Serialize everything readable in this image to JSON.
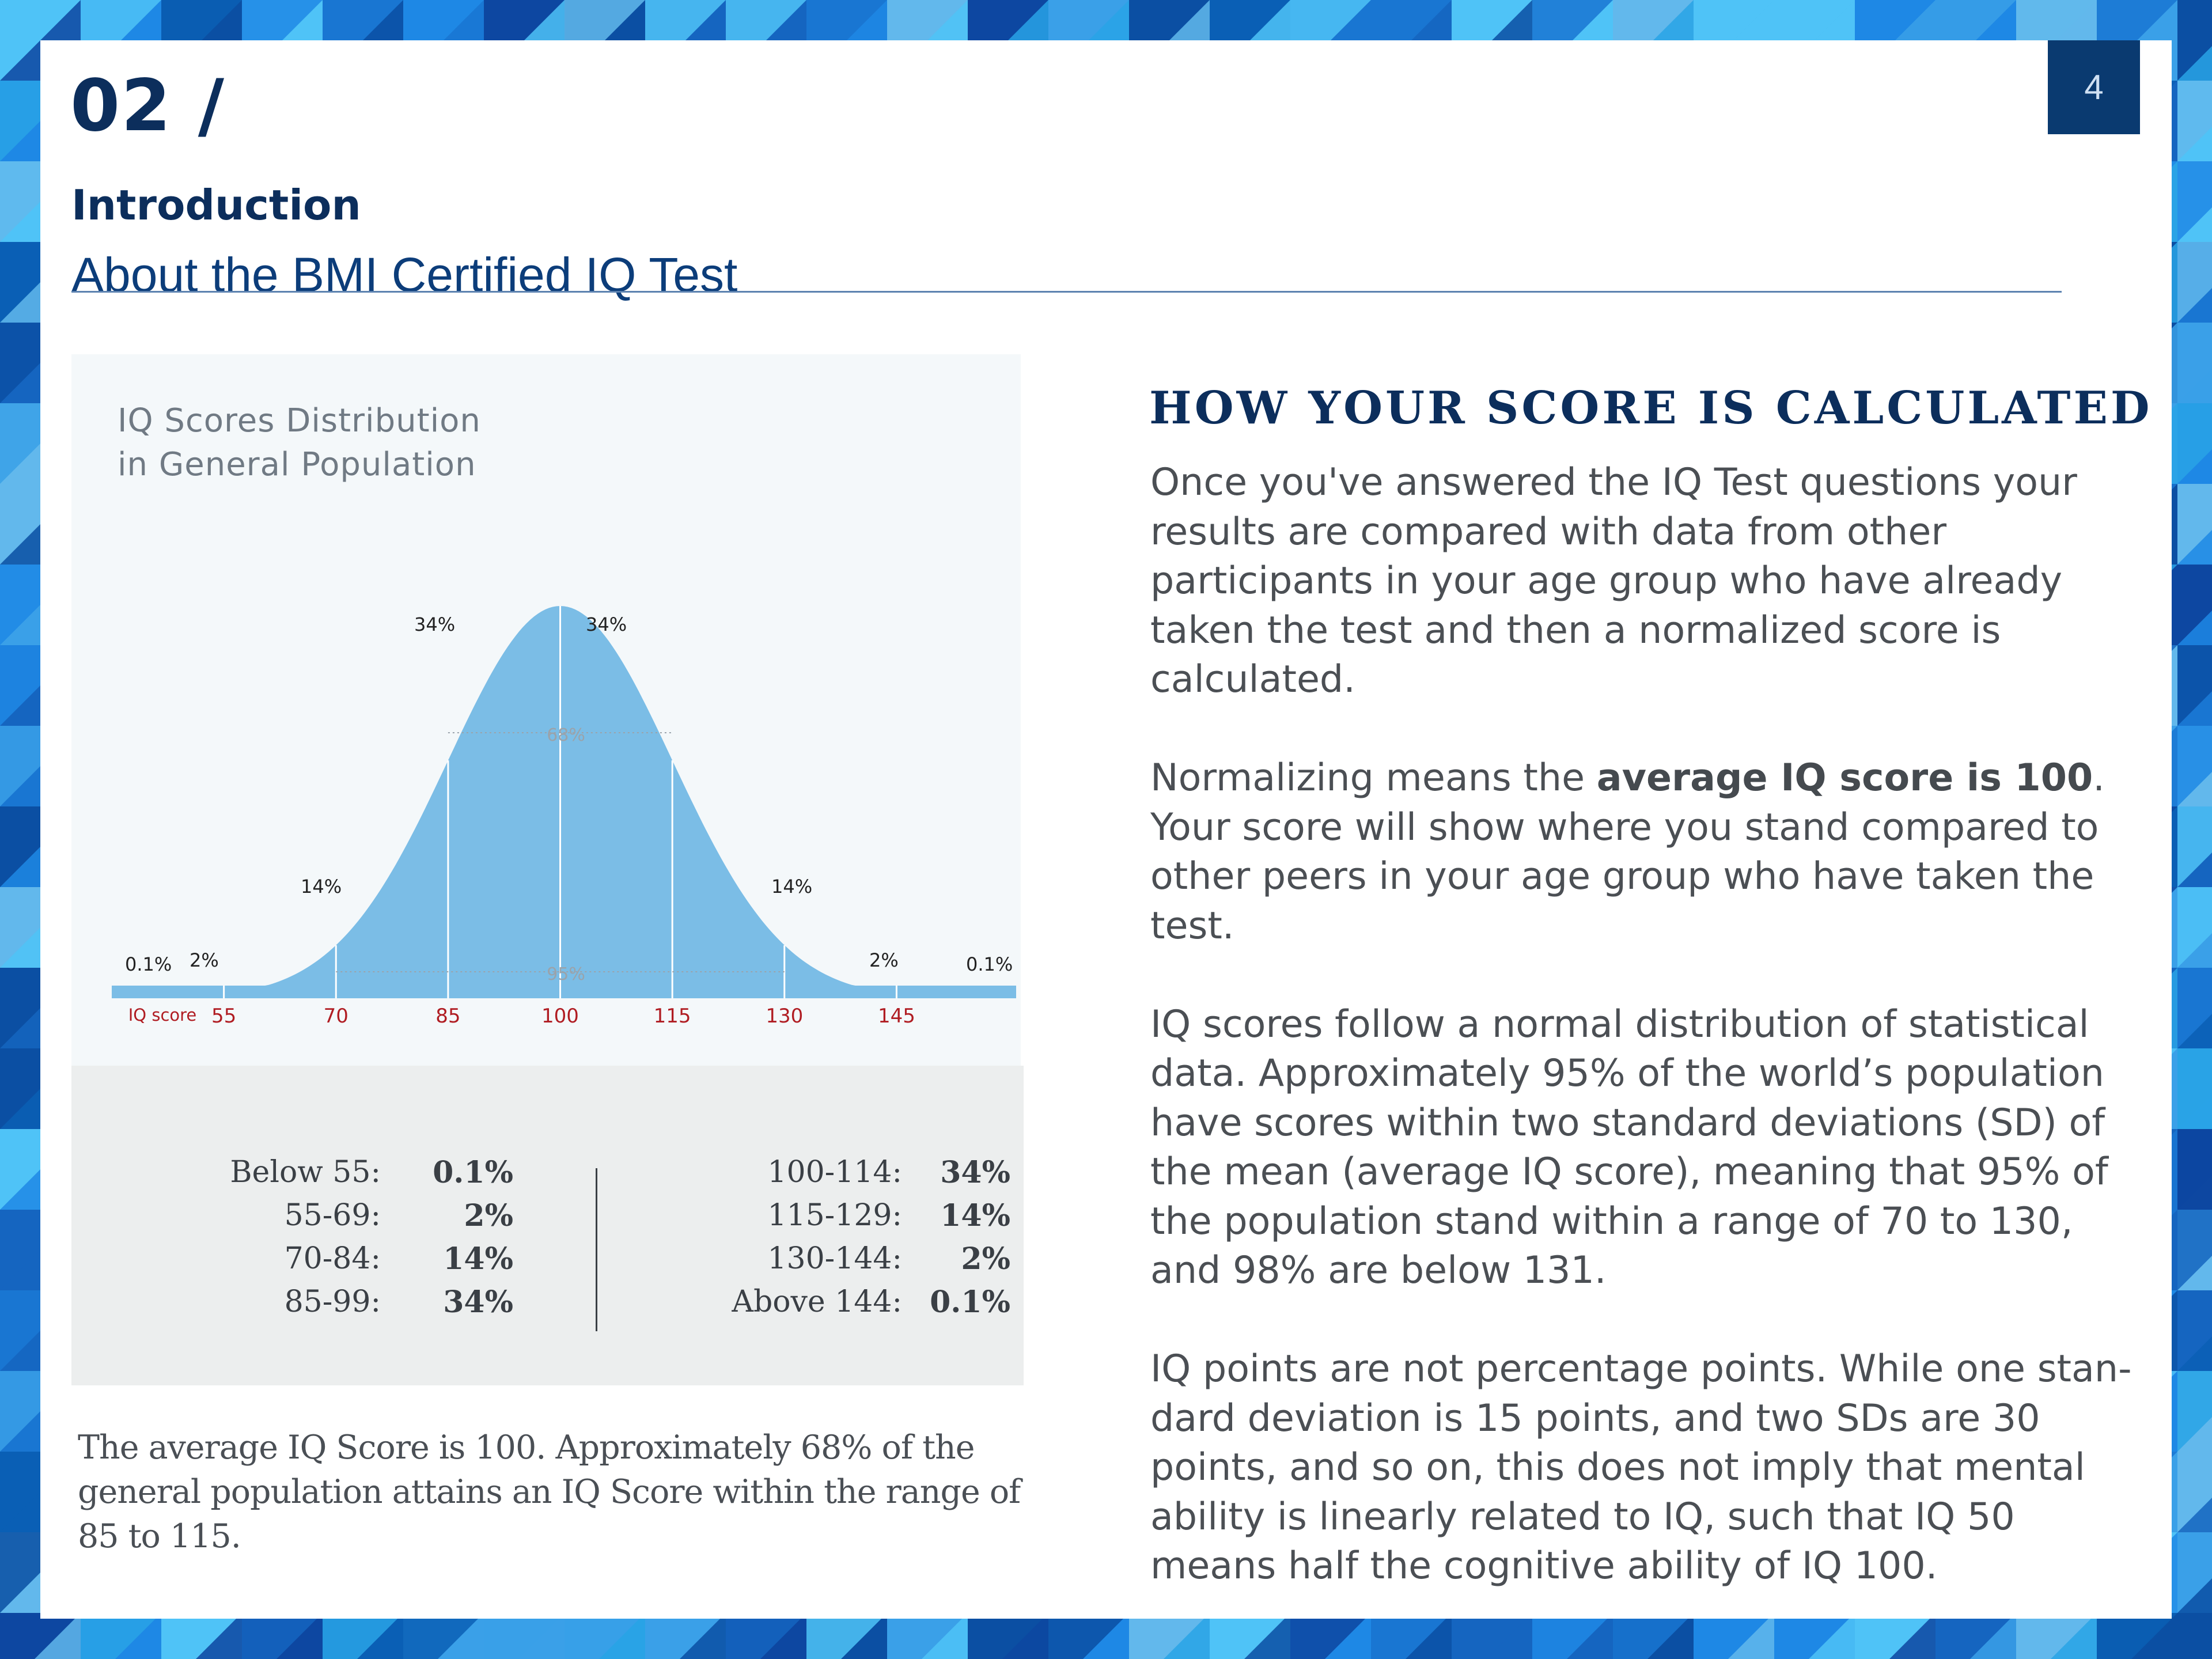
{
  "page": {
    "number": "4",
    "section_number": "02 /",
    "section_title": "Introduction",
    "section_subtitle": "About the BMI Certified IQ Test"
  },
  "chart": {
    "title_line1": "IQ Scores Distribution",
    "title_line2": "in General Population",
    "axis_label": "IQ score",
    "bracket_68": "68%",
    "bracket_95": "95%"
  },
  "chart_data": {
    "type": "area",
    "title": "IQ Scores Distribution in General Population",
    "xlabel": "IQ score",
    "ylabel": "",
    "distribution": "normal",
    "mean": 100,
    "sd": 15,
    "x_ticks": [
      55,
      70,
      85,
      100,
      115,
      130,
      145
    ],
    "xlim": [
      40,
      161
    ],
    "grid": false,
    "legend": "none",
    "segments": [
      {
        "range": [
          40,
          55
        ],
        "label": "0.1%",
        "value": 0.1
      },
      {
        "range": [
          55,
          70
        ],
        "label": "2%",
        "value": 2
      },
      {
        "range": [
          70,
          85
        ],
        "label": "14%",
        "value": 14
      },
      {
        "range": [
          85,
          100
        ],
        "label": "34%",
        "value": 34
      },
      {
        "range": [
          100,
          115
        ],
        "label": "34%",
        "value": 34
      },
      {
        "range": [
          115,
          130
        ],
        "label": "14%",
        "value": 14
      },
      {
        "range": [
          130,
          145
        ],
        "label": "2%",
        "value": 2
      },
      {
        "range": [
          145,
          161
        ],
        "label": "0.1%",
        "value": 0.1
      }
    ],
    "brackets": [
      {
        "label": "68%",
        "range": [
          85,
          115
        ]
      },
      {
        "label": "95%",
        "range": [
          70,
          130
        ]
      }
    ],
    "fill_color": "#7bbde6",
    "tick_color": "#b01c22"
  },
  "table": {
    "left": [
      {
        "range": "Below 55:",
        "pct": "0.1%"
      },
      {
        "range": "55-69:",
        "pct": "2%"
      },
      {
        "range": "70-84:",
        "pct": "14%"
      },
      {
        "range": "85-99:",
        "pct": "34%"
      }
    ],
    "right": [
      {
        "range": "100-114:",
        "pct": "34%"
      },
      {
        "range": "115-129:",
        "pct": "14%"
      },
      {
        "range": "130-144:",
        "pct": "2%"
      },
      {
        "range": "Above 144:",
        "pct": "0.1%"
      }
    ]
  },
  "caption": "The average IQ Score is 100. Approximately 68% of the general population attains an IQ Score within the range of 85 to 115.",
  "side": {
    "heading": "HOW YOUR SCORE IS CALCULATED",
    "p1": "Once you've answered the IQ Test questions your results are compared with data from other participants in your age group who have already taken the test and then a normalized score is calculated.",
    "p2_pre": "Normalizing means the ",
    "p2_bold": "average IQ score is 100",
    "p2_post": ". Your score will show where you stand compared to other peers in your age group who have taken the test.",
    "p3": "IQ scores follow a normal distribution of statistical data. Approximately 95% of the world’s population have scores within two standard deviations (SD) of the mean (average IQ score), meaning that 95% of the population stand within a range of 70 to 130, and 98% are below 131.",
    "p4": "IQ points are not percentage points. While one stan-dard deviation is 15 points, and two SDs are 30 points, and so on, this does not imply that mental ability is linearly related to IQ, such that IQ 50 means half the cognitive ability of IQ 100."
  },
  "colors": {
    "navy": "#0c2e5c",
    "page_num_bg": "#0a3a70",
    "chart_fill": "#7bbde6",
    "tick_red": "#b01c22"
  }
}
